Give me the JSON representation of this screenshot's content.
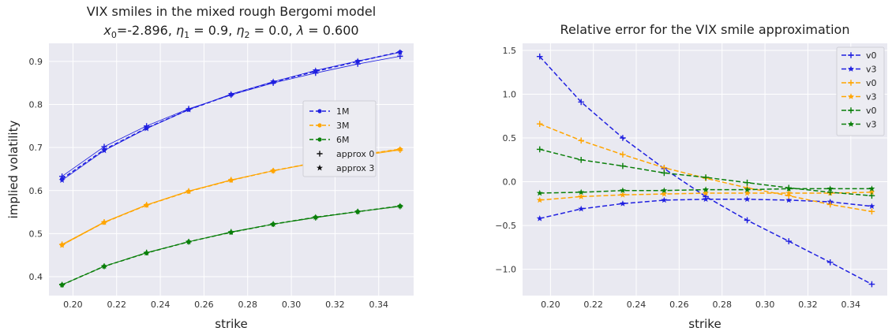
{
  "chart_data": [
    {
      "type": "line",
      "title_line1": "VIX smiles in the mixed rough Bergomi model",
      "title_line2": {
        "x0_symbol": "x",
        "x0_sub": "0",
        "x0_value": "=-2.896, ",
        "eta1_symbol": "η",
        "eta1_sub": "1",
        "eta1_value": " = 0.9, ",
        "eta2_symbol": "η",
        "eta2_sub": "2",
        "eta2_value": " = 0.0, ",
        "lambda_symbol": "λ",
        "lambda_value": " = 0.600"
      },
      "xlabel": "strike",
      "ylabel": "implied volatility",
      "xlim": [
        0.189,
        0.356
      ],
      "ylim": [
        0.356,
        0.942
      ],
      "xticks": [
        "0.20",
        "0.22",
        "0.24",
        "0.26",
        "0.28",
        "0.30",
        "0.32",
        "0.34"
      ],
      "xtick_values": [
        0.2,
        0.22,
        0.24,
        0.26,
        0.28,
        0.3,
        0.32,
        0.34
      ],
      "yticks": [
        "0.4",
        "0.5",
        "0.6",
        "0.7",
        "0.8",
        "0.9"
      ],
      "ytick_values": [
        0.4,
        0.5,
        0.6,
        0.7,
        0.8,
        0.9
      ],
      "grid": true,
      "legend_position": "right",
      "x": [
        0.195,
        0.2143,
        0.2337,
        0.253,
        0.2724,
        0.2917,
        0.3111,
        0.3304,
        0.3498
      ],
      "series": [
        {
          "name": "1M",
          "color": "#1f1fe0",
          "values": [
            0.627,
            0.695,
            0.745,
            0.788,
            0.823,
            0.852,
            0.877,
            0.9,
            0.922
          ]
        },
        {
          "name": "3M",
          "color": "#ffa500",
          "values": [
            0.474,
            0.526,
            0.566,
            0.598,
            0.624,
            0.646,
            0.665,
            0.682,
            0.696
          ]
        },
        {
          "name": "6M",
          "color": "#0a7f0a",
          "values": [
            0.381,
            0.424,
            0.455,
            0.481,
            0.503,
            0.522,
            0.538,
            0.551,
            0.564
          ]
        }
      ],
      "approx": [
        {
          "name": "approx 0",
          "marker": "plus",
          "series_values": [
            [
              0.633,
              0.702,
              0.75,
              0.79,
              0.822,
              0.85,
              0.873,
              0.894,
              0.912
            ],
            [
              0.475,
              0.527,
              0.567,
              0.599,
              0.625,
              0.646,
              0.664,
              0.68,
              0.694
            ],
            [
              0.381,
              0.424,
              0.456,
              0.481,
              0.504,
              0.522,
              0.537,
              0.551,
              0.563
            ]
          ]
        },
        {
          "name": "approx 3",
          "marker": "star",
          "series_values": [
            [
              0.624,
              0.693,
              0.744,
              0.788,
              0.824,
              0.853,
              0.879,
              0.901,
              0.921
            ],
            [
              0.473,
              0.526,
              0.566,
              0.598,
              0.624,
              0.646,
              0.665,
              0.682,
              0.696
            ],
            [
              0.381,
              0.424,
              0.455,
              0.481,
              0.503,
              0.522,
              0.538,
              0.551,
              0.564
            ]
          ]
        }
      ],
      "legend": [
        "1M",
        "3M",
        "6M",
        "approx 0",
        "approx 3"
      ]
    },
    {
      "type": "line",
      "title": "Relative error for the VIX smile approximation",
      "xlabel": "strike",
      "ylabel": "",
      "xlim": [
        0.187,
        0.357
      ],
      "ylim": [
        -1.3,
        1.58
      ],
      "xticks": [
        "0.20",
        "0.22",
        "0.24",
        "0.26",
        "0.28",
        "0.30",
        "0.32",
        "0.34"
      ],
      "xtick_values": [
        0.2,
        0.22,
        0.24,
        0.26,
        0.28,
        0.3,
        0.32,
        0.34
      ],
      "yticks": [
        "1.5",
        "1.0",
        "0.5",
        "0.0",
        "−0.5",
        "−1.0"
      ],
      "ytick_values": [
        1.5,
        1.0,
        0.5,
        0.0,
        -0.5,
        -1.0
      ],
      "grid": true,
      "legend_position": "top-right",
      "x": [
        0.195,
        0.2143,
        0.2337,
        0.253,
        0.2724,
        0.2917,
        0.3111,
        0.3304,
        0.3498
      ],
      "series": [
        {
          "name": "v0",
          "color": "#1f1fe0",
          "marker": "plus",
          "values": [
            1.43,
            0.91,
            0.5,
            0.15,
            -0.17,
            -0.44,
            -0.68,
            -0.92,
            -1.17
          ]
        },
        {
          "name": "v3",
          "color": "#1f1fe0",
          "marker": "star",
          "values": [
            -0.42,
            -0.31,
            -0.25,
            -0.21,
            -0.2,
            -0.2,
            -0.21,
            -0.23,
            -0.28
          ]
        },
        {
          "name": "v0",
          "color": "#ffa500",
          "marker": "plus",
          "values": [
            0.66,
            0.47,
            0.31,
            0.16,
            0.04,
            -0.07,
            -0.16,
            -0.26,
            -0.34
          ]
        },
        {
          "name": "v3",
          "color": "#ffa500",
          "marker": "star",
          "values": [
            -0.21,
            -0.17,
            -0.15,
            -0.14,
            -0.13,
            -0.13,
            -0.13,
            -0.13,
            -0.12
          ]
        },
        {
          "name": "v0",
          "color": "#0a7f0a",
          "marker": "plus",
          "values": [
            0.37,
            0.25,
            0.18,
            0.1,
            0.05,
            -0.01,
            -0.07,
            -0.12,
            -0.16
          ]
        },
        {
          "name": "v3",
          "color": "#0a7f0a",
          "marker": "star",
          "values": [
            -0.13,
            -0.12,
            -0.1,
            -0.1,
            -0.09,
            -0.09,
            -0.08,
            -0.08,
            -0.08
          ]
        }
      ],
      "legend": [
        "v0",
        "v3",
        "v0",
        "v3",
        "v0",
        "v3"
      ]
    }
  ]
}
